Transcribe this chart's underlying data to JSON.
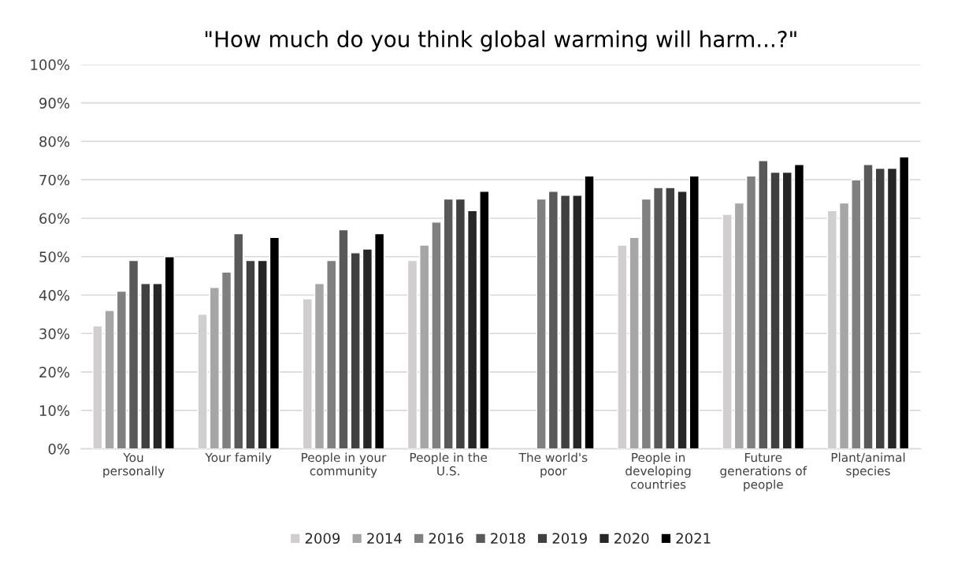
{
  "chart_data": {
    "type": "bar",
    "title": "\"How much do you think global warming will harm...?\"",
    "categories": [
      "You\npersonally",
      "Your family",
      "People in your\ncommunity",
      "People in the\nU.S.",
      "The world's\npoor",
      "People in\ndeveloping\ncountries",
      "Future\ngenerations of\npeople",
      "Plant/animal\nspecies"
    ],
    "series": [
      {
        "name": "2009",
        "color": "#d0cece",
        "values": [
          32,
          35,
          39,
          49,
          null,
          53,
          61,
          62
        ]
      },
      {
        "name": "2014",
        "color": "#a6a6a6",
        "values": [
          36,
          42,
          43,
          53,
          null,
          55,
          64,
          64
        ]
      },
      {
        "name": "2016",
        "color": "#808080",
        "values": [
          41,
          46,
          49,
          59,
          65,
          65,
          71,
          70
        ]
      },
      {
        "name": "2018",
        "color": "#595959",
        "values": [
          49,
          56,
          57,
          65,
          67,
          68,
          75,
          74
        ]
      },
      {
        "name": "2019",
        "color": "#404040",
        "values": [
          43,
          49,
          51,
          65,
          66,
          68,
          72,
          73
        ]
      },
      {
        "name": "2020",
        "color": "#262626",
        "values": [
          43,
          49,
          52,
          62,
          66,
          67,
          72,
          73
        ]
      },
      {
        "name": "2021",
        "color": "#000000",
        "values": [
          50,
          55,
          56,
          67,
          71,
          71,
          74,
          76
        ]
      }
    ],
    "ylim": [
      0,
      100
    ],
    "yticks": [
      {
        "value": 0,
        "label": "0%"
      },
      {
        "value": 10,
        "label": "10%"
      },
      {
        "value": 20,
        "label": "20%"
      },
      {
        "value": 30,
        "label": "30%"
      },
      {
        "value": 40,
        "label": "40%"
      },
      {
        "value": 50,
        "label": "50%"
      },
      {
        "value": 60,
        "label": "60%"
      },
      {
        "value": 70,
        "label": "70%"
      },
      {
        "value": 80,
        "label": "80%"
      },
      {
        "value": 90,
        "label": "90%"
      },
      {
        "value": 100,
        "label": "100%"
      }
    ],
    "grid": "y",
    "legend": "bottom"
  }
}
